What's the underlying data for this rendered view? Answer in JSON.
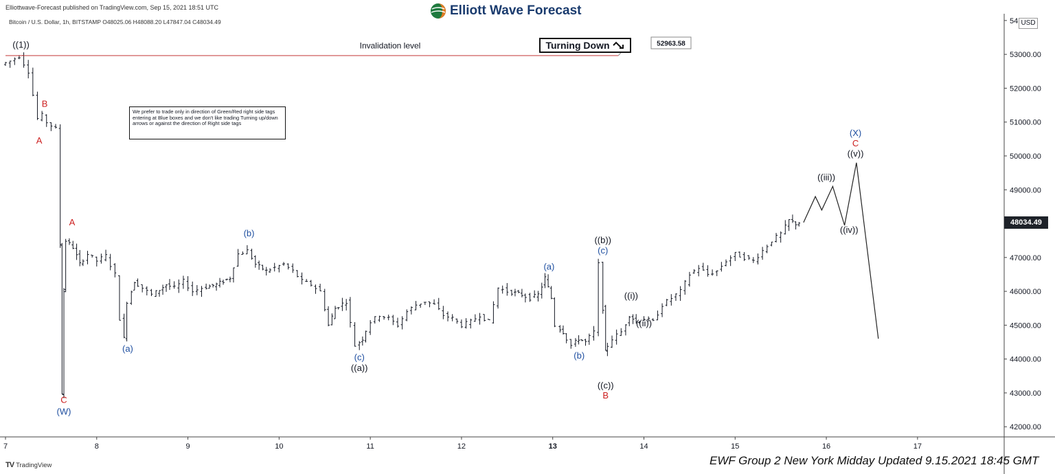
{
  "header": {
    "publisher": "Elliottwave-Forecast published on TradingView.com, Sep 15, 2021 18:51 UTC",
    "logo_text": "Elliott Wave Forecast",
    "symbol_line": "Bitcoin / U.S. Dollar, 1h, BITSTAMP  O48025.06  H48088.20  L47847.04  C48034.49",
    "currency": "USD"
  },
  "chart_data": {
    "type": "candlestick",
    "x_tick_labels": [
      "7",
      "8",
      "9",
      "10",
      "11",
      "12",
      "13",
      "14",
      "15",
      "16",
      "17"
    ],
    "x_range_days": [
      7,
      17.95
    ],
    "y_tick_labels": [
      "42000.00",
      "43000.00",
      "44000.00",
      "45000.00",
      "46000.00",
      "47000.00",
      "48000.00",
      "49000.00",
      "50000.00",
      "51000.00",
      "52000.00",
      "53000.00",
      "54"
    ],
    "y_range": [
      41700,
      54200
    ],
    "last_price": "48034.49",
    "invalidation": {
      "label": "Invalidation level",
      "value": 52963.58,
      "value_label": "52963.58"
    },
    "signal": "Turning Down",
    "price_path": [
      [
        7.0,
        52700
      ],
      [
        7.1,
        52800
      ],
      [
        7.2,
        52950
      ],
      [
        7.3,
        52500
      ],
      [
        7.35,
        51800
      ],
      [
        7.4,
        51100
      ],
      [
        7.45,
        51200
      ],
      [
        7.5,
        51000
      ],
      [
        7.55,
        50900
      ],
      [
        7.6,
        50800
      ],
      [
        7.62,
        47400
      ],
      [
        7.64,
        43000
      ],
      [
        7.66,
        46000
      ],
      [
        7.7,
        47500
      ],
      [
        7.78,
        47300
      ],
      [
        7.85,
        46800
      ],
      [
        7.95,
        47100
      ],
      [
        8.05,
        46900
      ],
      [
        8.15,
        47050
      ],
      [
        8.25,
        46500
      ],
      [
        8.3,
        45200
      ],
      [
        8.33,
        44600
      ],
      [
        8.38,
        45700
      ],
      [
        8.45,
        46300
      ],
      [
        8.55,
        46100
      ],
      [
        8.65,
        45900
      ],
      [
        8.8,
        46200
      ],
      [
        8.9,
        46100
      ],
      [
        9.0,
        46300
      ],
      [
        9.1,
        46000
      ],
      [
        9.2,
        46100
      ],
      [
        9.35,
        46200
      ],
      [
        9.5,
        46400
      ],
      [
        9.6,
        47100
      ],
      [
        9.7,
        47200
      ],
      [
        9.78,
        46800
      ],
      [
        9.9,
        46600
      ],
      [
        10.0,
        46700
      ],
      [
        10.1,
        46800
      ],
      [
        10.2,
        46600
      ],
      [
        10.3,
        46300
      ],
      [
        10.4,
        46200
      ],
      [
        10.5,
        46000
      ],
      [
        10.58,
        45000
      ],
      [
        10.65,
        45500
      ],
      [
        10.78,
        45700
      ],
      [
        10.88,
        44400
      ],
      [
        10.95,
        44600
      ],
      [
        11.05,
        45100
      ],
      [
        11.15,
        45300
      ],
      [
        11.25,
        45200
      ],
      [
        11.35,
        45000
      ],
      [
        11.45,
        45400
      ],
      [
        11.55,
        45600
      ],
      [
        11.65,
        45700
      ],
      [
        11.75,
        45600
      ],
      [
        11.85,
        45300
      ],
      [
        11.95,
        45200
      ],
      [
        12.05,
        45000
      ],
      [
        12.15,
        45100
      ],
      [
        12.25,
        45300
      ],
      [
        12.35,
        45100
      ],
      [
        12.4,
        45600
      ],
      [
        12.45,
        46100
      ],
      [
        12.55,
        46000
      ],
      [
        12.7,
        45900
      ],
      [
        12.8,
        45800
      ],
      [
        12.88,
        45900
      ],
      [
        12.95,
        46400
      ],
      [
        13.02,
        45800
      ],
      [
        13.08,
        45000
      ],
      [
        13.15,
        44800
      ],
      [
        13.25,
        44400
      ],
      [
        13.32,
        44600
      ],
      [
        13.4,
        44500
      ],
      [
        13.5,
        44800
      ],
      [
        13.55,
        46800
      ],
      [
        13.58,
        45500
      ],
      [
        13.6,
        44200
      ],
      [
        13.7,
        44600
      ],
      [
        13.8,
        44800
      ],
      [
        13.88,
        45300
      ],
      [
        13.95,
        45100
      ],
      [
        14.05,
        45200
      ],
      [
        14.15,
        45100
      ],
      [
        14.25,
        45600
      ],
      [
        14.35,
        45800
      ],
      [
        14.45,
        46000
      ],
      [
        14.55,
        46500
      ],
      [
        14.65,
        46700
      ],
      [
        14.75,
        46500
      ],
      [
        14.85,
        46600
      ],
      [
        14.95,
        46900
      ],
      [
        15.05,
        47100
      ],
      [
        15.15,
        47000
      ],
      [
        15.25,
        46900
      ],
      [
        15.35,
        47200
      ],
      [
        15.45,
        47500
      ],
      [
        15.55,
        47700
      ],
      [
        15.63,
        48100
      ],
      [
        15.7,
        48000
      ],
      [
        15.75,
        48034
      ]
    ],
    "projection": [
      [
        15.75,
        48034
      ],
      [
        15.88,
        48800
      ],
      [
        15.95,
        48400
      ],
      [
        16.07,
        49100
      ],
      [
        16.2,
        47950
      ],
      [
        16.33,
        49800
      ],
      [
        16.57,
        44600
      ]
    ],
    "wave_labels": [
      {
        "text": "((1))",
        "x": 7.17,
        "y": 53200,
        "color": "black"
      },
      {
        "text": "B",
        "x": 7.43,
        "y": 51450,
        "color": "red"
      },
      {
        "text": "A",
        "x": 7.37,
        "y": 50360,
        "color": "red"
      },
      {
        "text": "A",
        "x": 7.73,
        "y": 47950,
        "color": "red"
      },
      {
        "text": "C",
        "x": 7.64,
        "y": 42700,
        "color": "red"
      },
      {
        "text": "(W)",
        "x": 7.64,
        "y": 42360,
        "color": "blue"
      },
      {
        "text": "(a)",
        "x": 8.34,
        "y": 44220,
        "color": "blue"
      },
      {
        "text": "(b)",
        "x": 9.67,
        "y": 47630,
        "color": "blue"
      },
      {
        "text": "(c)",
        "x": 10.88,
        "y": 43960,
        "color": "blue"
      },
      {
        "text": "((a))",
        "x": 10.88,
        "y": 43650,
        "color": "black"
      },
      {
        "text": "(a)",
        "x": 12.96,
        "y": 46640,
        "color": "blue"
      },
      {
        "text": "(b)",
        "x": 13.29,
        "y": 44010,
        "color": "blue"
      },
      {
        "text": "((b))",
        "x": 13.55,
        "y": 47420,
        "color": "black"
      },
      {
        "text": "(c)",
        "x": 13.55,
        "y": 47120,
        "color": "blue"
      },
      {
        "text": "((c))",
        "x": 13.58,
        "y": 43130,
        "color": "black"
      },
      {
        "text": "B",
        "x": 13.58,
        "y": 42840,
        "color": "red"
      },
      {
        "text": "((i))",
        "x": 13.86,
        "y": 45780,
        "color": "black"
      },
      {
        "text": "((ii))",
        "x": 14.0,
        "y": 44970,
        "color": "black"
      },
      {
        "text": "((iii))",
        "x": 16.0,
        "y": 49280,
        "color": "black"
      },
      {
        "text": "((iv))",
        "x": 16.25,
        "y": 47730,
        "color": "black"
      },
      {
        "text": "((v))",
        "x": 16.32,
        "y": 49980,
        "color": "black"
      },
      {
        "text": "C",
        "x": 16.32,
        "y": 50280,
        "color": "red"
      },
      {
        "text": "(X)",
        "x": 16.32,
        "y": 50590,
        "color": "blue"
      }
    ]
  },
  "note": "We prefer to trade only in direction of Green/Red right side tags entering at Blue boxes and we don't like trading Turning up/down arrows or against the direction of Right side tags",
  "footer": {
    "update_text": "EWF Group 2 New York Midday Updated 9.15.2021 18:45 GMT",
    "tv_brand": "TradingView"
  },
  "colors": {
    "invalidation": "#c94b4b",
    "red_label": "#cc1f1f",
    "blue_label": "#1f4fa0",
    "price": "#131722"
  }
}
